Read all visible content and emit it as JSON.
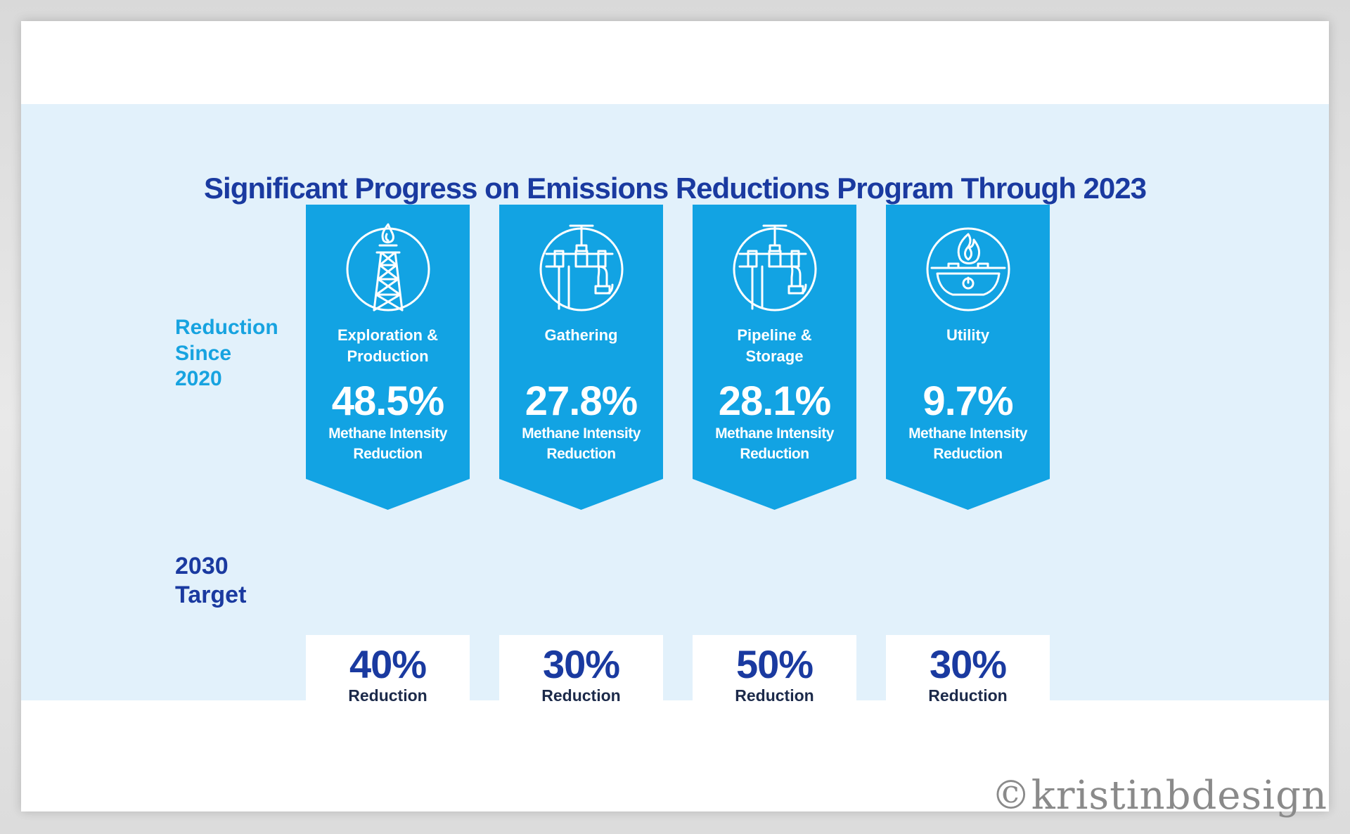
{
  "title": "Significant Progress on Emissions Reductions Program Through 2023",
  "row_labels": {
    "since": [
      "Reduction",
      "Since",
      "2020"
    ],
    "target": [
      "2030",
      "Target"
    ]
  },
  "colors": {
    "band": "#e2f1fb",
    "banner": "#12a3e3",
    "title": "#1a3aa0",
    "since_label": "#17a3e0"
  },
  "segments": [
    {
      "icon": "oil-derrick-icon",
      "category": [
        "Exploration &",
        "Production"
      ],
      "value": "48.5%",
      "value_label": [
        "Methane Intensity",
        "Reduction"
      ],
      "target_value": "40%",
      "target_label": "Reduction"
    },
    {
      "icon": "pipe-valve-icon",
      "category": [
        "Gathering"
      ],
      "value": "27.8%",
      "value_label": [
        "Methane Intensity",
        "Reduction"
      ],
      "target_value": "30%",
      "target_label": "Reduction"
    },
    {
      "icon": "pipe-valve-icon",
      "category": [
        "Pipeline &",
        "Storage"
      ],
      "value": "28.1%",
      "value_label": [
        "Methane Intensity",
        "Reduction"
      ],
      "target_value": "50%",
      "target_label": "Reduction"
    },
    {
      "icon": "gas-burner-icon",
      "category": [
        "Utility"
      ],
      "value": "9.7%",
      "value_label": [
        "Methane Intensity",
        "Reduction"
      ],
      "target_value": "30%",
      "target_label": "Reduction"
    }
  ],
  "watermark": "©kristinbdesign"
}
